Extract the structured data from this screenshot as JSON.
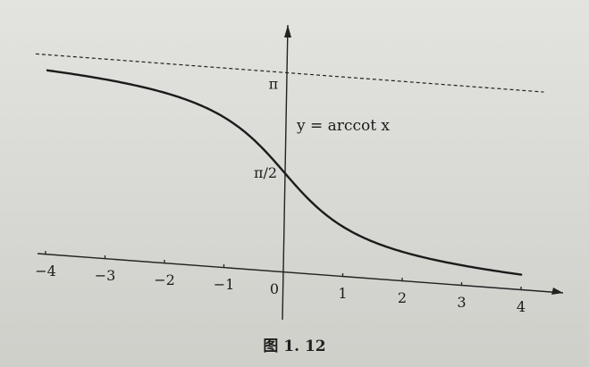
{
  "chart_data": {
    "type": "line",
    "function_label": "y = arccot x",
    "x_ticks": [
      "−4",
      "−3",
      "−2",
      "−1",
      "0",
      "1",
      "2",
      "3",
      "4"
    ],
    "y_ticks": [
      "π",
      "π/2"
    ],
    "asymptote": {
      "y": 3.14159,
      "label": "π",
      "style": "dashed"
    },
    "xlim": [
      -4,
      4
    ],
    "ylim": [
      0,
      3.14159
    ],
    "grid": false,
    "legend": "none",
    "series": [
      {
        "x": [
          -4,
          -3.5,
          -3,
          -2.5,
          -2,
          -1.5,
          -1,
          -0.5,
          0,
          0.5,
          1,
          1.5,
          2,
          2.5,
          3,
          3.5,
          4
        ],
        "y": [
          2.897,
          2.865,
          2.82,
          2.761,
          2.678,
          2.554,
          2.356,
          2.034,
          1.571,
          1.107,
          0.785,
          0.588,
          0.464,
          0.381,
          0.322,
          0.278,
          0.245
        ]
      }
    ]
  },
  "caption": "图 1. 12"
}
